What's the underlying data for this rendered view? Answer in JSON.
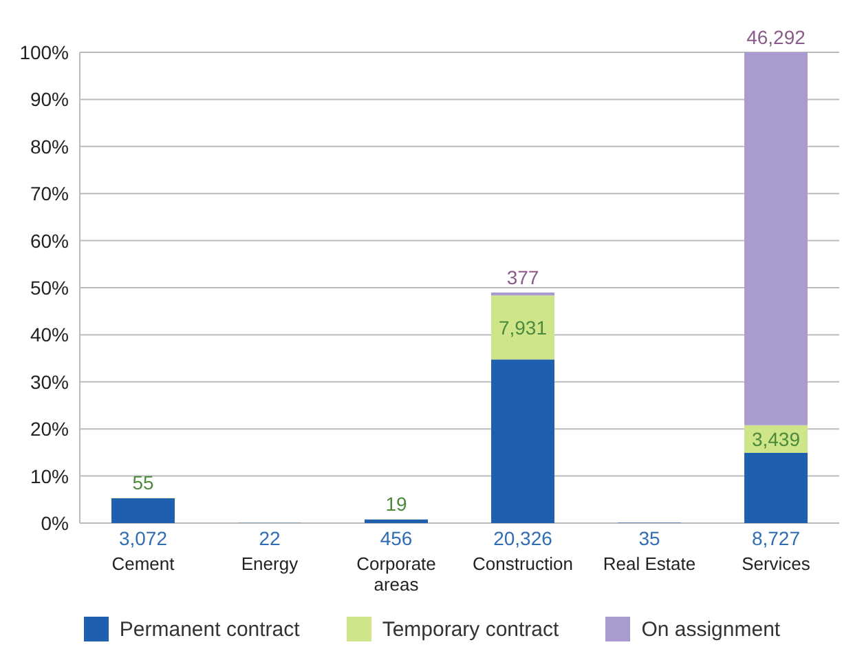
{
  "chart_data": {
    "type": "bar",
    "stacked": true,
    "categories": [
      "Cement",
      "Energy",
      "Corporate areas",
      "Construction",
      "Real Estate",
      "Services"
    ],
    "series": [
      {
        "name": "Permanent contract",
        "color": "#1f5fae",
        "axis": "y2",
        "values": [
          3072,
          22,
          456,
          20326,
          35,
          8727
        ],
        "value_labels": [
          "3,072",
          "22",
          "456",
          "20,326",
          "35",
          "8,727"
        ]
      },
      {
        "name": "Temporary contract",
        "color": "#cfe58a",
        "axis": "y2",
        "values": [
          55,
          null,
          19,
          7931,
          null,
          3439
        ],
        "value_labels": [
          "55",
          null,
          "19",
          "7,931",
          null,
          "3,439"
        ]
      },
      {
        "name": "On assignment",
        "color": "#a99bd0",
        "axis": "y2",
        "values": [
          null,
          null,
          null,
          377,
          null,
          46292
        ],
        "value_labels": [
          null,
          null,
          null,
          "377",
          null,
          "46,292"
        ]
      }
    ],
    "ylim": [
      0,
      100
    ],
    "yticks": [
      {
        "value": 0,
        "label": "0%"
      },
      {
        "value": 10,
        "label": "10%"
      },
      {
        "value": 20,
        "label": "20%"
      },
      {
        "value": 30,
        "label": "30%"
      },
      {
        "value": 40,
        "label": "40%"
      },
      {
        "value": 50,
        "label": "50%"
      },
      {
        "value": 60,
        "label": "60%"
      },
      {
        "value": 70,
        "label": "70%"
      },
      {
        "value": 80,
        "label": "80%"
      },
      {
        "value": 90,
        "label": "90%"
      },
      {
        "value": 100,
        "label": "100%"
      }
    ],
    "y2lim": [
      0,
      58458
    ],
    "grid": "y",
    "legend": "bottom"
  }
}
